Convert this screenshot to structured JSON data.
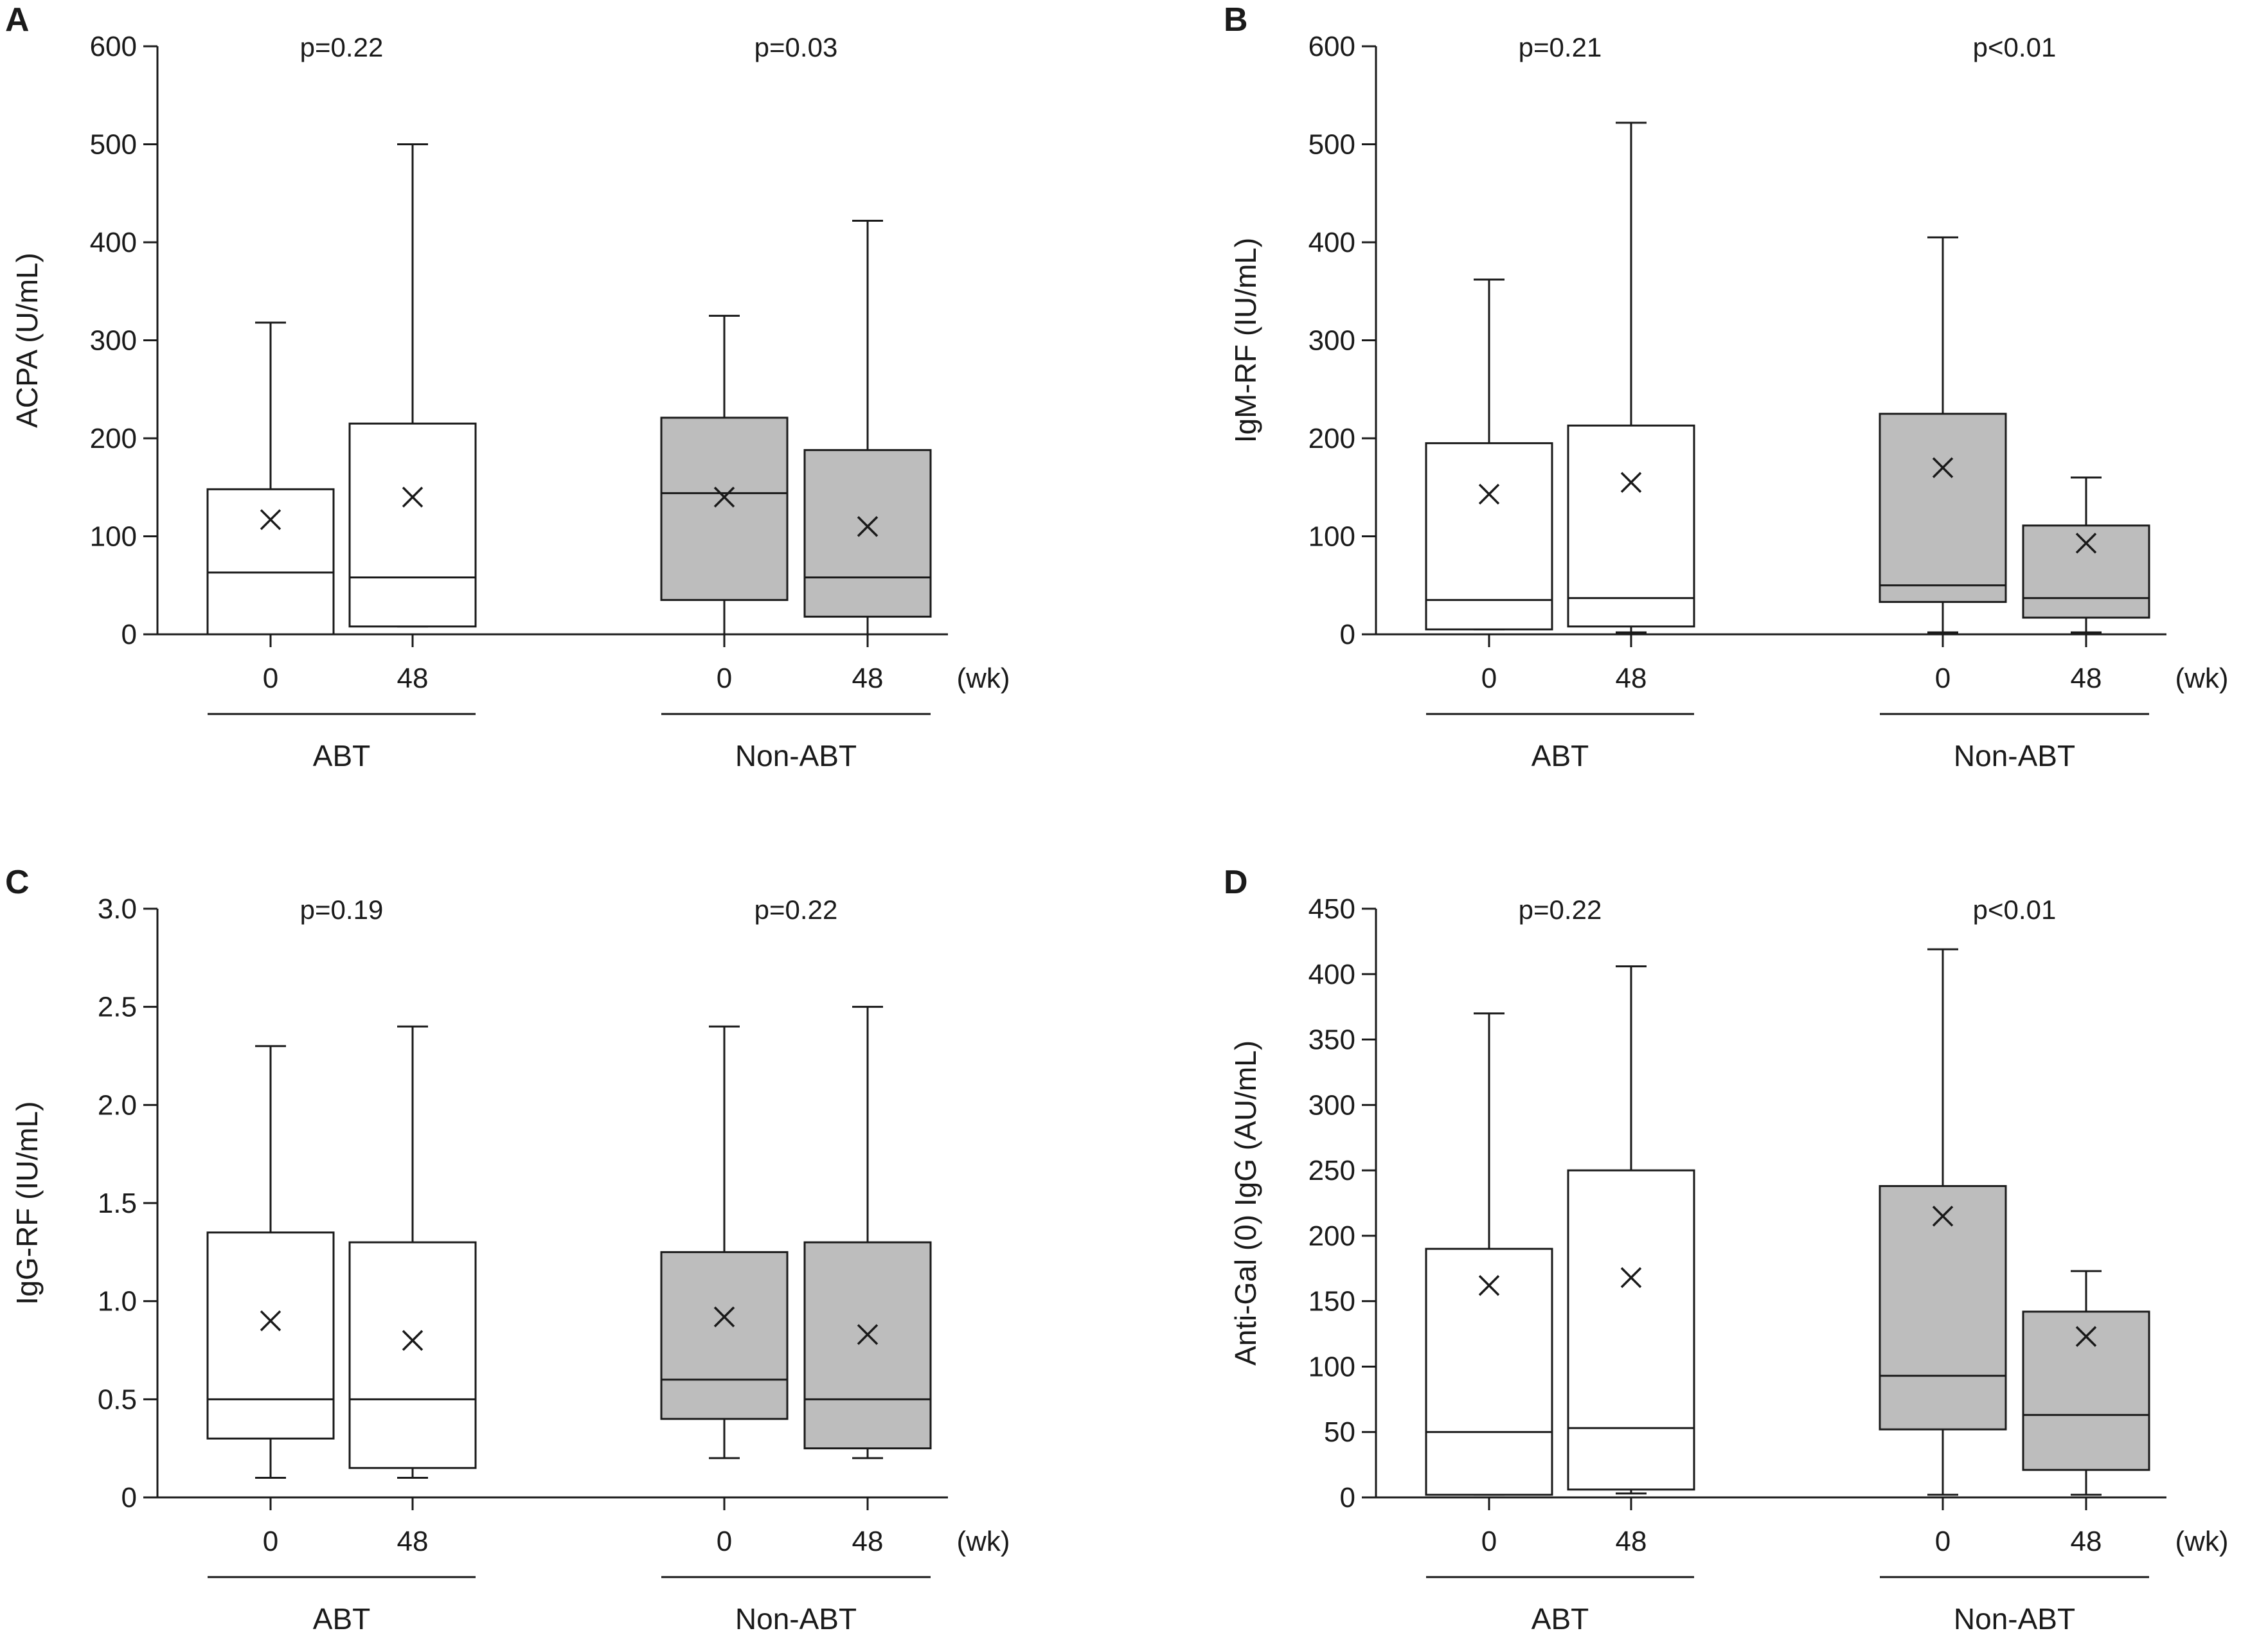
{
  "x_unit": "(wk)",
  "colors": {
    "abt_fill": "#ffffff",
    "non_abt_fill": "#bdbdbd",
    "ink": "#1a1a1a"
  },
  "chart_data": [
    {
      "type": "box",
      "panel": "A",
      "ylabel": "ACPA (U/mL)",
      "ylim": [
        0,
        600
      ],
      "yticks": [
        "0",
        "100",
        "200",
        "300",
        "400",
        "500",
        "600"
      ],
      "ytick_values": [
        0,
        100,
        200,
        300,
        400,
        500,
        600
      ],
      "groups": [
        {
          "name": "ABT",
          "pvalue": "p=0.22",
          "fill": "white",
          "boxes": [
            {
              "x": "0",
              "min": 0,
              "q1": 0,
              "median": 63,
              "q3": 148,
              "max": 318,
              "mean": 117
            },
            {
              "x": "48",
              "min": 8,
              "q1": 8,
              "median": 58,
              "q3": 215,
              "max": 500,
              "mean": 140
            }
          ]
        },
        {
          "name": "Non-ABT",
          "pvalue": "p=0.03",
          "fill": "gray",
          "boxes": [
            {
              "x": "0",
              "min": 0,
              "q1": 35,
              "median": 144,
              "q3": 221,
              "max": 325,
              "mean": 140
            },
            {
              "x": "48",
              "min": 0,
              "q1": 18,
              "median": 58,
              "q3": 188,
              "max": 422,
              "mean": 110
            }
          ]
        }
      ]
    },
    {
      "type": "box",
      "panel": "B",
      "ylabel": "IgM-RF (IU/mL)",
      "ylim": [
        0,
        600
      ],
      "yticks": [
        "0",
        "100",
        "200",
        "300",
        "400",
        "500",
        "600"
      ],
      "ytick_values": [
        0,
        100,
        200,
        300,
        400,
        500,
        600
      ],
      "groups": [
        {
          "name": "ABT",
          "pvalue": "p=0.21",
          "fill": "white",
          "boxes": [
            {
              "x": "0",
              "min": 5,
              "q1": 5,
              "median": 35,
              "q3": 195,
              "max": 362,
              "mean": 143
            },
            {
              "x": "48",
              "min": 2,
              "q1": 8,
              "median": 37,
              "q3": 213,
              "max": 522,
              "mean": 155
            }
          ]
        },
        {
          "name": "Non-ABT",
          "pvalue": "p<0.01",
          "fill": "gray",
          "boxes": [
            {
              "x": "0",
              "min": 2,
              "q1": 33,
              "median": 50,
              "q3": 225,
              "max": 405,
              "mean": 170
            },
            {
              "x": "48",
              "min": 2,
              "q1": 17,
              "median": 37,
              "q3": 111,
              "max": 160,
              "mean": 93
            }
          ]
        }
      ]
    },
    {
      "type": "box",
      "panel": "C",
      "ylabel": "IgG-RF (IU/mL)",
      "ylim": [
        0,
        3.0
      ],
      "yticks": [
        "0",
        "0.5",
        "1.0",
        "1.5",
        "2.0",
        "2.5",
        "3.0"
      ],
      "ytick_values": [
        0,
        0.5,
        1.0,
        1.5,
        2.0,
        2.5,
        3.0
      ],
      "groups": [
        {
          "name": "ABT",
          "pvalue": "p=0.19",
          "fill": "white",
          "boxes": [
            {
              "x": "0",
              "min": 0.1,
              "q1": 0.3,
              "median": 0.5,
              "q3": 1.35,
              "max": 2.3,
              "mean": 0.9
            },
            {
              "x": "48",
              "min": 0.1,
              "q1": 0.15,
              "median": 0.5,
              "q3": 1.3,
              "max": 2.4,
              "mean": 0.8
            }
          ]
        },
        {
          "name": "Non-ABT",
          "pvalue": "p=0.22",
          "fill": "gray",
          "boxes": [
            {
              "x": "0",
              "min": 0.2,
              "q1": 0.4,
              "median": 0.6,
              "q3": 1.25,
              "max": 2.4,
              "mean": 0.92
            },
            {
              "x": "48",
              "min": 0.2,
              "q1": 0.25,
              "median": 0.5,
              "q3": 1.3,
              "max": 2.5,
              "mean": 0.83
            }
          ]
        }
      ]
    },
    {
      "type": "box",
      "panel": "D",
      "ylabel": "Anti-Gal (0) IgG (AU/mL)",
      "ylim": [
        0,
        450
      ],
      "yticks": [
        "0",
        "50",
        "100",
        "150",
        "200",
        "250",
        "300",
        "350",
        "400",
        "450"
      ],
      "ytick_values": [
        0,
        50,
        100,
        150,
        200,
        250,
        300,
        350,
        400,
        450
      ],
      "groups": [
        {
          "name": "ABT",
          "pvalue": "p=0.22",
          "fill": "white",
          "boxes": [
            {
              "x": "0",
              "min": 2,
              "q1": 2,
              "median": 50,
              "q3": 190,
              "max": 370,
              "mean": 162
            },
            {
              "x": "48",
              "min": 3,
              "q1": 6,
              "median": 53,
              "q3": 250,
              "max": 406,
              "mean": 168
            }
          ]
        },
        {
          "name": "Non-ABT",
          "pvalue": "p<0.01",
          "fill": "gray",
          "boxes": [
            {
              "x": "0",
              "min": 2,
              "q1": 52,
              "median": 93,
              "q3": 238,
              "max": 419,
              "mean": 215
            },
            {
              "x": "48",
              "min": 2,
              "q1": 21,
              "median": 63,
              "q3": 142,
              "max": 173,
              "mean": 123
            }
          ]
        }
      ]
    }
  ]
}
